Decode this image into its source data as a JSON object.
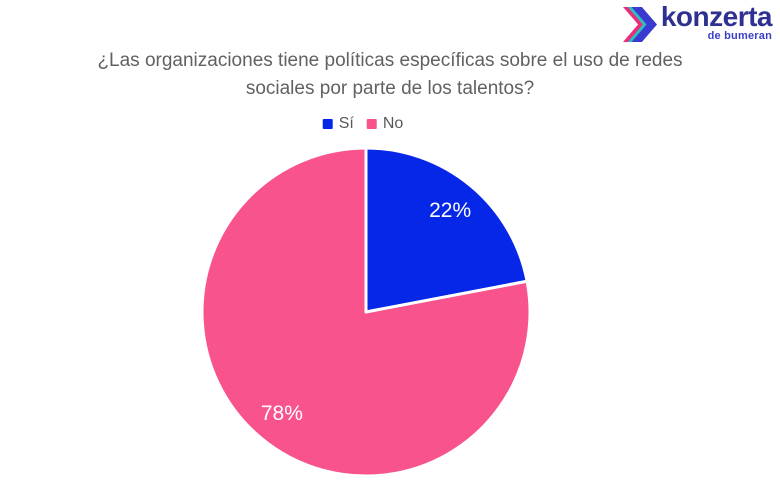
{
  "logo": {
    "brand": "konzerta",
    "subtitle": "de bumeran",
    "brand_color": "#2e3191",
    "subtitle_color": "#3a3fc9",
    "icon_colors": [
      "#ee2a7b",
      "#2bbfc0",
      "#3a3ad1"
    ]
  },
  "title": {
    "full": "¿Las organizaciones tiene políticas específicas sobre el uso de redes sociales por parte de los talentos?",
    "line1": "¿Las organizaciones tiene políticas específicas sobre el uso de redes",
    "line2": "sociales por parte de los talentos?",
    "color": "#616161"
  },
  "chart_data": {
    "type": "pie",
    "title": "¿Las organizaciones tiene políticas específicas sobre el uso de redes sociales por parte de los talentos?",
    "categories": [
      "Sí",
      "No"
    ],
    "values": [
      22,
      78
    ],
    "labels": [
      "22%",
      "78%"
    ],
    "colors": [
      "#0727e8",
      "#f9538e"
    ],
    "label_color": "#ffffff",
    "slice_border_color": "#ffffff",
    "legend_position": "top",
    "start_angle_deg": 0,
    "direction": "clockwise"
  }
}
